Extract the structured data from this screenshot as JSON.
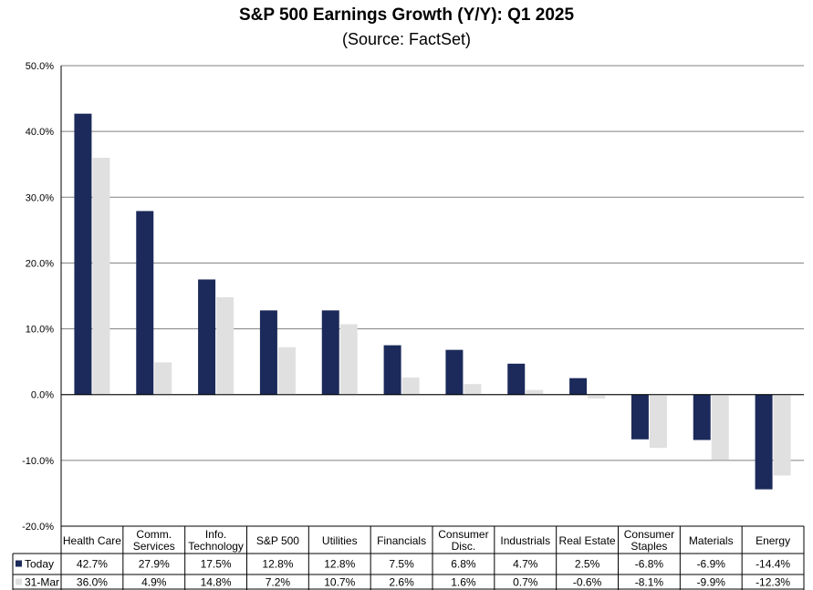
{
  "chart_data": {
    "type": "bar",
    "title": "S&P 500 Earnings Growth (Y/Y): Q1 2025",
    "subtitle": "(Source: FactSet)",
    "categories": [
      [
        "Health Care"
      ],
      [
        "Comm.",
        "Services"
      ],
      [
        "Info.",
        "Technology"
      ],
      [
        "S&P 500"
      ],
      [
        "Utilities"
      ],
      [
        "Financials"
      ],
      [
        "Consumer",
        "Disc."
      ],
      [
        "Industrials"
      ],
      [
        "Real Estate"
      ],
      [
        "Consumer",
        "Staples"
      ],
      [
        "Materials"
      ],
      [
        "Energy"
      ]
    ],
    "series": [
      {
        "name": "Today",
        "color": "#1b2a5a",
        "values": [
          42.7,
          27.9,
          17.5,
          12.8,
          12.8,
          7.5,
          6.8,
          4.7,
          2.5,
          -6.8,
          -6.9,
          -14.4
        ],
        "labels": [
          "42.7%",
          "27.9%",
          "17.5%",
          "12.8%",
          "12.8%",
          "7.5%",
          "6.8%",
          "4.7%",
          "2.5%",
          "-6.8%",
          "-6.9%",
          "-14.4%"
        ]
      },
      {
        "name": "31-Mar",
        "color": "#e0e0e0",
        "values": [
          36.0,
          4.9,
          14.8,
          7.2,
          10.7,
          2.6,
          1.6,
          0.7,
          -0.6,
          -8.1,
          -9.9,
          -12.3
        ],
        "labels": [
          "36.0%",
          "4.9%",
          "14.8%",
          "7.2%",
          "10.7%",
          "2.6%",
          "1.6%",
          "0.7%",
          "-0.6%",
          "-8.1%",
          "-9.9%",
          "-12.3%"
        ]
      }
    ],
    "ylim": [
      -20,
      50
    ],
    "yticks": [
      50,
      40,
      30,
      20,
      10,
      0,
      -10,
      -20
    ],
    "ytick_labels": [
      "50.0%",
      "40.0%",
      "30.0%",
      "20.0%",
      "10.0%",
      "0.0%",
      "-10.0%",
      "-20.0%"
    ],
    "grid": true,
    "legend": "data-table"
  }
}
